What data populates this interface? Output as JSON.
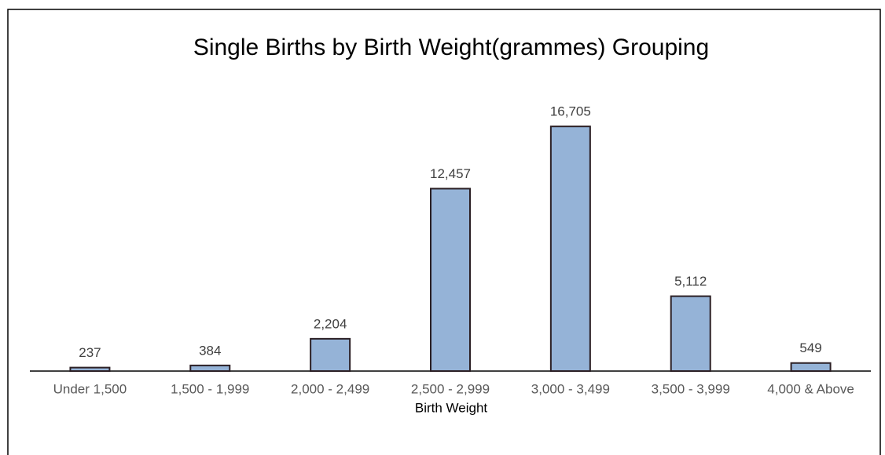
{
  "chart_data": {
    "type": "bar",
    "title": "Single Births by Birth Weight(grammes) Grouping",
    "x_label": "Birth Weight",
    "categories": [
      "Under 1,500",
      "1,500 - 1,999",
      "2,000 - 2,499",
      "2,500 - 2,999",
      "3,000 - 3,499",
      "3,500 - 3,999",
      "4,000 & Above"
    ],
    "values": [
      237,
      384,
      2204,
      12457,
      16705,
      5112,
      549
    ],
    "value_labels": [
      "237",
      "384",
      "2,204",
      "12,457",
      "16,705",
      "5,112",
      "549"
    ],
    "color": "#95b3d7",
    "ylim": [
      0,
      18000
    ]
  }
}
